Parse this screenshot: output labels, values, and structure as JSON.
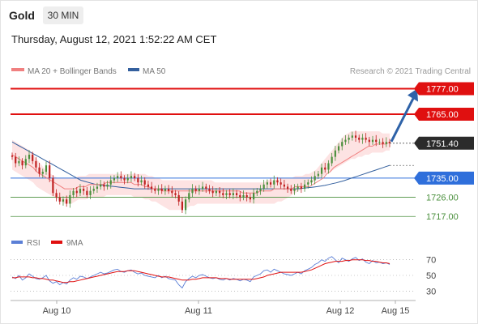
{
  "header": {
    "symbol": "Gold",
    "timeframe": "30 MIN",
    "datetime": "Thursday, August 12, 2021 1:52:22 AM CET"
  },
  "legend": {
    "ma20": "MA 20 + Bollinger Bands",
    "ma50": "MA 50",
    "credit": "Research © 2021 Trading Central",
    "rsi": "RSI",
    "ma9": "9MA"
  },
  "colors": {
    "ma20": "#f08080",
    "ma50": "#34609e",
    "band_fill": "#fde3e3",
    "resistance": "#e01010",
    "support": "#4a8f3c",
    "pivot": "#2f6fdb",
    "current_price_tag": "#2b2b2b",
    "candle_up": "#4a8f3c",
    "candle_down": "#c02020",
    "arrow": "#2e62a8",
    "rsi": "#5b7fd6",
    "rsi_ma": "#e01010"
  },
  "chart_data": [
    {
      "type": "candlestick",
      "x_ticks": [
        "Aug 10",
        "Aug 11",
        "Aug 12",
        "Aug 15"
      ],
      "y_range": [
        1711,
        1781
      ],
      "current_price": 1751.4,
      "levels": [
        {
          "label": "1777.00",
          "value": 1777.0,
          "kind": "resistance"
        },
        {
          "label": "1765.00",
          "value": 1765.0,
          "kind": "resistance"
        },
        {
          "label": "1735.00",
          "value": 1735.0,
          "kind": "pivot"
        },
        {
          "label": "1726.00",
          "value": 1726.0,
          "kind": "support"
        },
        {
          "label": "1717.00",
          "value": 1717.0,
          "kind": "support"
        }
      ],
      "close": [
        1745,
        1742,
        1743,
        1741,
        1744,
        1746,
        1743,
        1740,
        1737,
        1738,
        1741,
        1735,
        1728,
        1726,
        1724,
        1725,
        1723,
        1727,
        1729,
        1728,
        1730,
        1729,
        1727,
        1729,
        1730,
        1731,
        1732,
        1731,
        1732,
        1734,
        1735,
        1736,
        1735,
        1734,
        1735,
        1736,
        1735,
        1733,
        1734,
        1732,
        1731,
        1730,
        1729,
        1730,
        1729,
        1730,
        1729,
        1728,
        1727,
        1724,
        1720,
        1725,
        1728,
        1730,
        1729,
        1730,
        1731,
        1730,
        1729,
        1728,
        1729,
        1728,
        1727,
        1728,
        1727,
        1728,
        1727,
        1726,
        1727,
        1726,
        1725,
        1728,
        1729,
        1730,
        1732,
        1733,
        1732,
        1734,
        1733,
        1732,
        1731,
        1730,
        1729,
        1730,
        1731,
        1730,
        1732,
        1733,
        1734,
        1736,
        1737,
        1740,
        1739,
        1742,
        1745,
        1748,
        1750,
        1752,
        1753,
        1754,
        1755,
        1754,
        1753,
        1754,
        1753,
        1752,
        1753,
        1752,
        1752,
        1751,
        1752,
        1751.4
      ],
      "ma20": [
        1746,
        1745,
        1744,
        1743,
        1742,
        1741,
        1740,
        1738,
        1737,
        1736,
        1735,
        1734,
        1733,
        1732,
        1731,
        1730,
        1730,
        1730,
        1730,
        1731,
        1731,
        1731,
        1732,
        1732,
        1732,
        1732,
        1732,
        1733,
        1733,
        1733,
        1733,
        1733,
        1733,
        1733,
        1733,
        1732,
        1732,
        1732,
        1731,
        1731,
        1730,
        1730,
        1730,
        1729,
        1729,
        1729,
        1729,
        1729,
        1729,
        1729,
        1729,
        1729,
        1729,
        1729,
        1729,
        1729,
        1729,
        1729,
        1729,
        1729,
        1729,
        1729,
        1729,
        1729,
        1729,
        1729,
        1728,
        1728,
        1728,
        1728,
        1728,
        1729,
        1729,
        1729,
        1729,
        1730,
        1730,
        1730,
        1730,
        1730,
        1730,
        1731,
        1731,
        1731,
        1731,
        1731,
        1732,
        1733,
        1734,
        1735,
        1737,
        1738,
        1740,
        1741,
        1742,
        1743,
        1744,
        1745,
        1746,
        1747,
        1748,
        1749,
        1750,
        1750,
        1751,
        1751,
        1751,
        1751,
        1752
      ],
      "ma50": [
        1752,
        1751,
        1750,
        1749,
        1748,
        1747,
        1746,
        1745,
        1744,
        1743,
        1742,
        1741,
        1740,
        1739,
        1738,
        1737,
        1736,
        1735,
        1734,
        1733.5,
        1733,
        1732.5,
        1732,
        1731.8,
        1731.6,
        1731.4,
        1731.2,
        1731,
        1730.8,
        1730.6,
        1730.4,
        1730.2,
        1730,
        1730,
        1730,
        1730,
        1730,
        1730,
        1730,
        1730,
        1730,
        1730,
        1730,
        1730,
        1730,
        1730,
        1730,
        1730,
        1730,
        1730,
        1730,
        1730,
        1730,
        1730,
        1730,
        1730,
        1730,
        1730,
        1730,
        1730,
        1730,
        1730,
        1730,
        1730,
        1730,
        1730,
        1730,
        1730,
        1730,
        1730,
        1730,
        1730,
        1730,
        1730,
        1730,
        1730,
        1730.2,
        1730.4,
        1730.6,
        1730.8,
        1731,
        1731.3,
        1731.6,
        1732,
        1732.4,
        1732.8,
        1733.3,
        1733.8,
        1734.4,
        1735,
        1735.6,
        1736.2,
        1736.8,
        1737.4,
        1738,
        1738.6,
        1739.2,
        1739.8,
        1740.4,
        1741
      ],
      "band_upper": [
        1753,
        1752,
        1751,
        1750,
        1749,
        1748,
        1746,
        1744,
        1742,
        1740,
        1738,
        1737,
        1736,
        1735,
        1735,
        1735,
        1735,
        1735,
        1735,
        1736,
        1736,
        1736,
        1737,
        1737,
        1737,
        1737,
        1737,
        1737,
        1737,
        1737,
        1737,
        1737,
        1737,
        1737,
        1737,
        1737,
        1737,
        1737,
        1737,
        1736,
        1736,
        1735,
        1735,
        1734,
        1734,
        1734,
        1734,
        1734,
        1734,
        1734,
        1734,
        1734,
        1734,
        1734,
        1734,
        1734,
        1734,
        1734,
        1733,
        1733,
        1733,
        1733,
        1733,
        1733,
        1733,
        1733,
        1733,
        1733,
        1733,
        1733,
        1733,
        1733,
        1733,
        1734,
        1734,
        1734,
        1735,
        1735,
        1735,
        1735,
        1735,
        1736,
        1736,
        1736,
        1737,
        1737,
        1738,
        1739,
        1741,
        1743,
        1745,
        1747,
        1749,
        1751,
        1753,
        1755,
        1756,
        1757,
        1757,
        1757,
        1757,
        1757,
        1757,
        1757,
        1757,
        1757,
        1756,
        1756,
        1756
      ],
      "band_lower": [
        1739,
        1738,
        1737,
        1736,
        1735,
        1734,
        1733,
        1731,
        1730,
        1729,
        1728,
        1727,
        1726,
        1725,
        1724,
        1723,
        1723,
        1723,
        1724,
        1725,
        1725,
        1725,
        1726,
        1726,
        1726,
        1726,
        1726,
        1727,
        1727,
        1727,
        1727,
        1727,
        1727,
        1727,
        1727,
        1726,
        1726,
        1726,
        1725,
        1725,
        1724,
        1724,
        1723,
        1722,
        1721,
        1720,
        1720,
        1720,
        1720,
        1721,
        1721,
        1722,
        1722,
        1723,
        1723,
        1723,
        1723,
        1723,
        1723,
        1723,
        1723,
        1723,
        1723,
        1723,
        1723,
        1723,
        1723,
        1723,
        1723,
        1723,
        1723,
        1723,
        1723,
        1723,
        1723,
        1723,
        1724,
        1724,
        1725,
        1726,
        1727,
        1728,
        1729,
        1730,
        1731,
        1732,
        1733,
        1734,
        1735,
        1736,
        1737,
        1738,
        1739,
        1740,
        1741,
        1742,
        1743,
        1744,
        1744,
        1745,
        1745,
        1746,
        1746,
        1747,
        1747,
        1747,
        1747,
        1748,
        1748
      ]
    },
    {
      "type": "line",
      "name": "RSI",
      "y_ticks": [
        70,
        50,
        30
      ],
      "y_range": [
        20,
        80
      ],
      "rsi": [
        48,
        46,
        50,
        44,
        47,
        52,
        49,
        46,
        45,
        47,
        50,
        43,
        40,
        42,
        38,
        41,
        39,
        44,
        47,
        45,
        49,
        48,
        46,
        48,
        50,
        52,
        54,
        52,
        53,
        55,
        57,
        58,
        55,
        54,
        56,
        57,
        54,
        52,
        53,
        50,
        49,
        48,
        47,
        50,
        47,
        49,
        46,
        45,
        44,
        38,
        34,
        42,
        46,
        49,
        47,
        50,
        51,
        49,
        47,
        46,
        47,
        45,
        44,
        46,
        44,
        46,
        45,
        43,
        45,
        44,
        42,
        48,
        50,
        52,
        56,
        57,
        54,
        58,
        56,
        54,
        52,
        51,
        50,
        52,
        54,
        52,
        56,
        58,
        60,
        64,
        66,
        70,
        68,
        72,
        74,
        70,
        66,
        72,
        70,
        68,
        71,
        73,
        69,
        71,
        67,
        65,
        69,
        66,
        67,
        65,
        66,
        64
      ],
      "ma9": [
        47,
        47,
        48,
        48,
        48,
        48,
        47,
        47,
        46,
        46,
        45,
        44,
        44,
        43,
        42,
        41,
        41,
        42,
        42,
        43,
        44,
        45,
        46,
        47,
        48,
        49,
        50,
        51,
        52,
        53,
        54,
        55,
        55,
        55,
        56,
        56,
        56,
        55,
        54,
        53,
        52,
        51,
        50,
        49,
        48,
        48,
        48,
        47,
        46,
        45,
        44,
        44,
        44,
        45,
        45,
        46,
        47,
        47,
        47,
        47,
        47,
        46,
        46,
        46,
        45,
        45,
        45,
        45,
        45,
        45,
        45,
        45,
        46,
        47,
        48,
        50,
        51,
        52,
        53,
        54,
        54,
        54,
        54,
        54,
        54,
        54,
        55,
        56,
        57,
        59,
        61,
        63,
        65,
        66,
        67,
        68,
        68,
        68,
        69,
        69,
        70,
        70,
        70,
        70,
        69,
        69,
        68,
        68,
        67,
        66,
        66,
        65
      ]
    }
  ]
}
